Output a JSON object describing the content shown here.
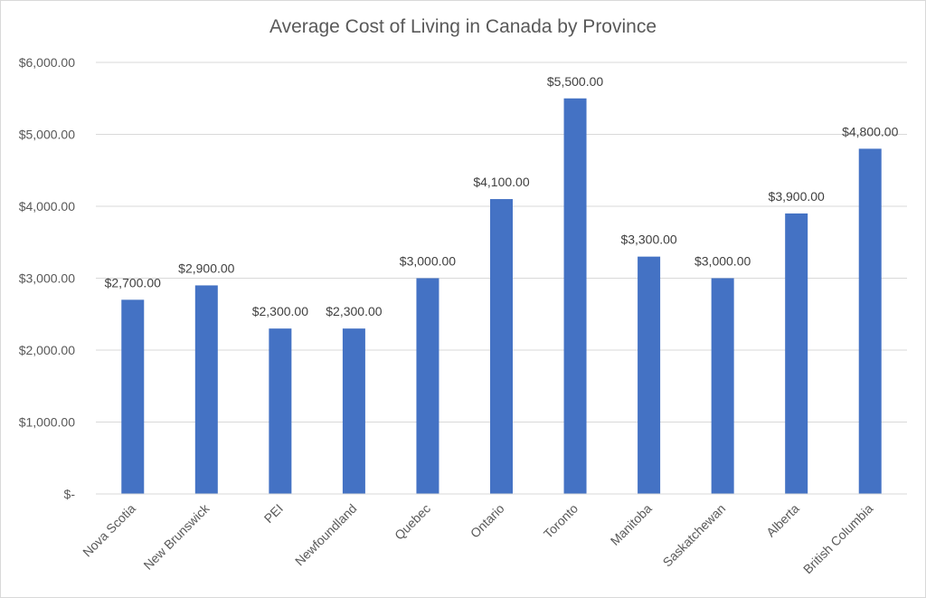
{
  "chart_data": {
    "type": "bar",
    "title": "Average Cost of Living in Canada by Province",
    "xlabel": "",
    "ylabel": "",
    "categories": [
      "Nova Scotia",
      "New Brunswick",
      "PEI",
      "Newfoundland",
      "Quebec",
      "Ontario",
      "Toronto",
      "Manitoba",
      "Saskatchewan",
      "Alberta",
      "British Columbia"
    ],
    "values": [
      2700,
      2900,
      2300,
      2300,
      3000,
      4100,
      5500,
      3300,
      3000,
      3900,
      4800
    ],
    "data_labels": [
      "$2,700.00",
      "$2,900.00",
      "$2,300.00",
      "$2,300.00",
      "$3,000.00",
      "$4,100.00",
      "$5,500.00",
      "$3,300.00",
      "$3,000.00",
      "$3,900.00",
      "$4,800.00"
    ],
    "ylim": [
      0,
      6000
    ],
    "y_ticks": [
      0,
      1000,
      2000,
      3000,
      4000,
      5000,
      6000
    ],
    "y_tick_labels": [
      "$-",
      "$1,000.00",
      "$2,000.00",
      "$3,000.00",
      "$4,000.00",
      "$5,000.00",
      "$6,000.00"
    ],
    "grid": true,
    "legend": "none",
    "bar_color": "#4472c4",
    "grid_color": "#d9d9d9"
  }
}
